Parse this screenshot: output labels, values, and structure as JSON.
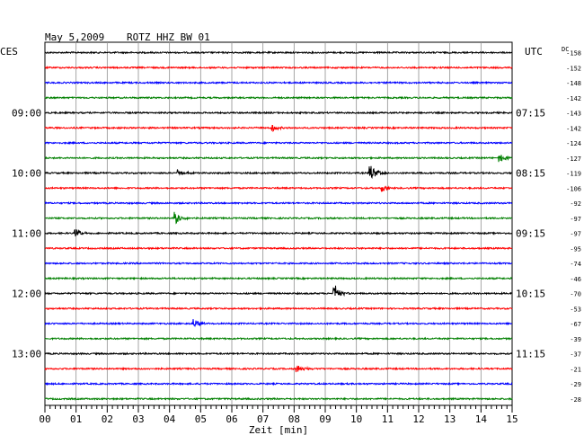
{
  "header": {
    "date": "May 5,2009",
    "station": "ROTZ HHZ BW 01",
    "left_zone": "CES",
    "right_zone": "UTC",
    "dc_label": "DC"
  },
  "chart_data": {
    "type": "line",
    "title": "May 5,2009   ROTZ HHZ BW 01",
    "xlabel": "Zeit [min]",
    "x_ticks": [
      "00",
      "01",
      "02",
      "03",
      "04",
      "05",
      "06",
      "07",
      "08",
      "09",
      "10",
      "11",
      "12",
      "13",
      "14",
      "15"
    ],
    "xlim": [
      0,
      15
    ],
    "traces_count": 24,
    "trace_colors": [
      "#000000",
      "#ff0000",
      "#0000ff",
      "#007f00"
    ],
    "left_hour_labels": [
      {
        "trace": 4,
        "label": "09:00"
      },
      {
        "trace": 8,
        "label": "10:00"
      },
      {
        "trace": 12,
        "label": "11:00"
      },
      {
        "trace": 16,
        "label": "12:00"
      },
      {
        "trace": 20,
        "label": "13:00"
      }
    ],
    "right_hour_labels": [
      {
        "trace": 4,
        "label": "07:15"
      },
      {
        "trace": 8,
        "label": "08:15"
      },
      {
        "trace": 12,
        "label": "09:15"
      },
      {
        "trace": 16,
        "label": "10:15"
      },
      {
        "trace": 20,
        "label": "11:15"
      }
    ],
    "dc_offsets": [
      "-158",
      "-152",
      "-148",
      "-142",
      "-143",
      "-142",
      "-124",
      "-127",
      "-119",
      "-106",
      "-92",
      "-97",
      "-97",
      "-95",
      "-74",
      "-46",
      "-70",
      "-53",
      "-67",
      "-39",
      "-37",
      "-21",
      "-29",
      "-28"
    ],
    "events": [
      {
        "trace": 5,
        "minute": 7.3,
        "amp": 4
      },
      {
        "trace": 7,
        "minute": 14.6,
        "amp": 5
      },
      {
        "trace": 8,
        "minute": 4.3,
        "amp": 4
      },
      {
        "trace": 8,
        "minute": 10.45,
        "amp": 10
      },
      {
        "trace": 9,
        "minute": 10.85,
        "amp": 4
      },
      {
        "trace": 11,
        "minute": 4.2,
        "amp": 7
      },
      {
        "trace": 12,
        "minute": 1.0,
        "amp": 4
      },
      {
        "trace": 16,
        "minute": 9.3,
        "amp": 10
      },
      {
        "trace": 18,
        "minute": 4.8,
        "amp": 6
      },
      {
        "trace": 21,
        "minute": 8.1,
        "amp": 5
      }
    ]
  }
}
